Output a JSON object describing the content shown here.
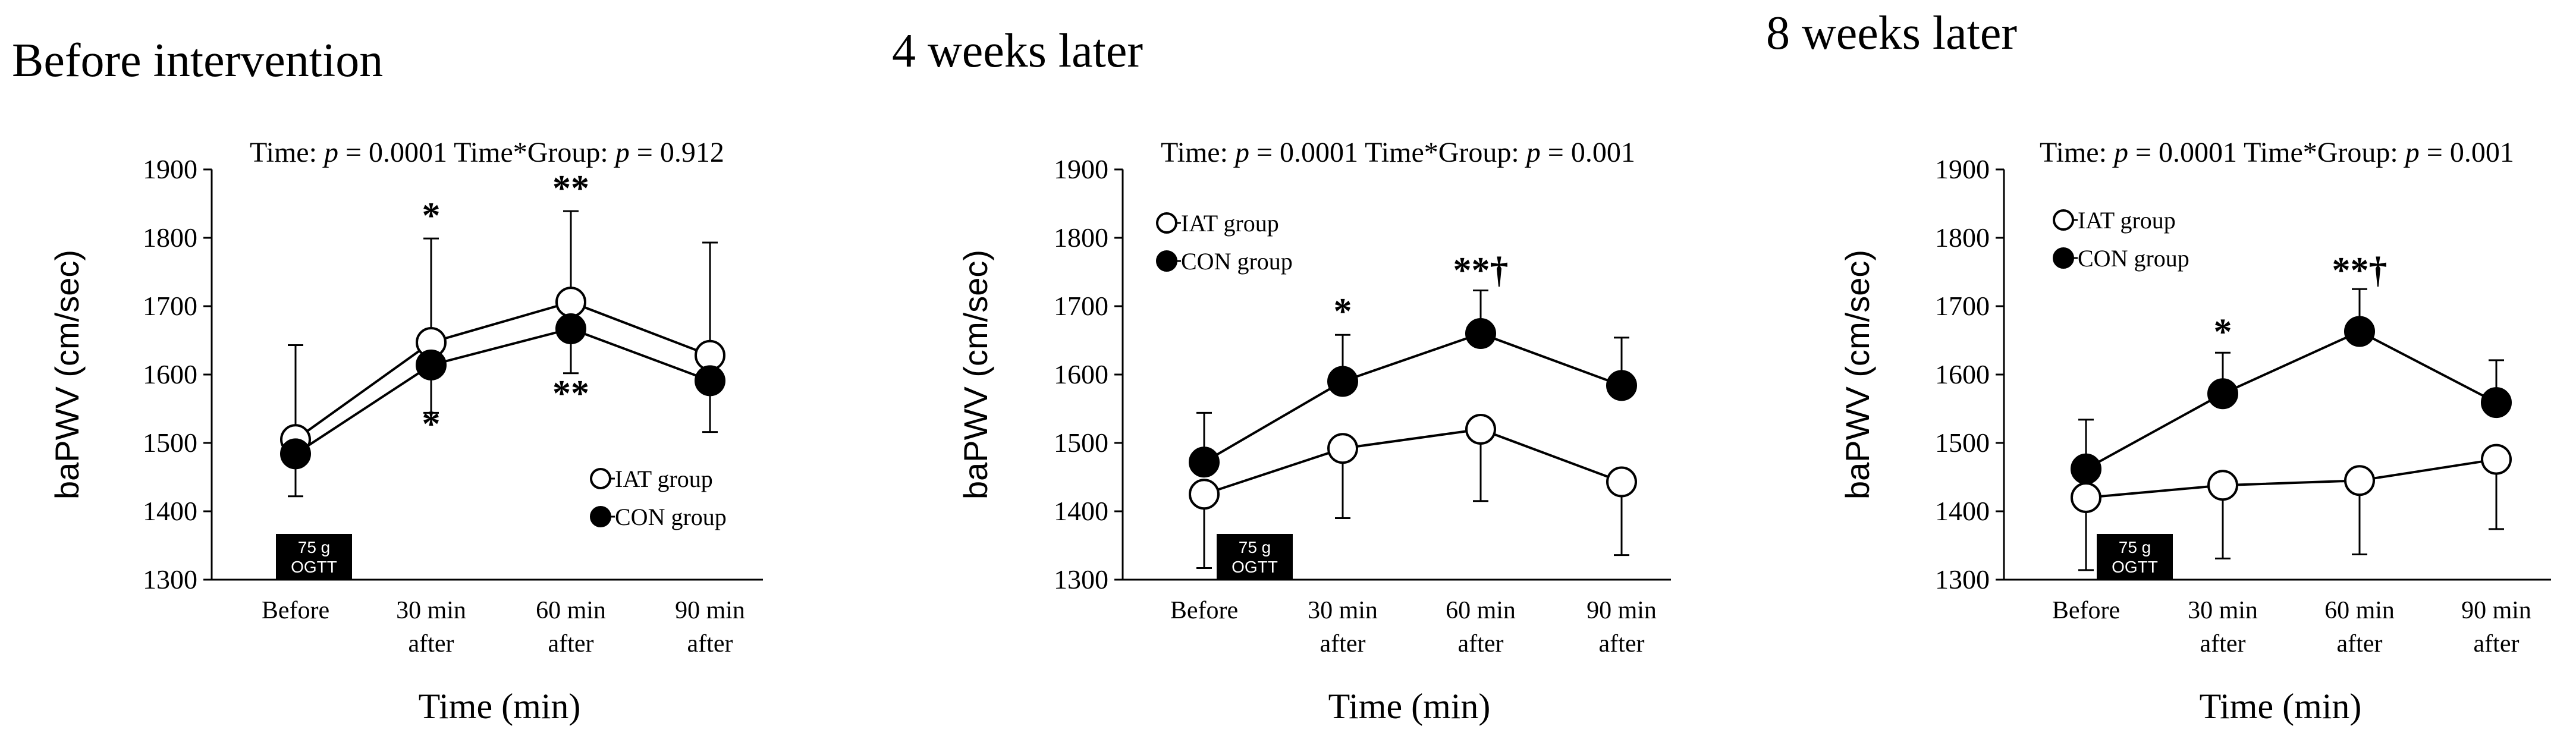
{
  "chart_data": [
    {
      "type": "line",
      "title": "Before intervention",
      "stats": {
        "time_prefix": "Time: ",
        "time_p": "p",
        "time_eq": " = 0.0001",
        "inter_prefix": "Time*Group: ",
        "inter_p": "p",
        "inter_eq": " = 0.912"
      },
      "xlabel": "Time (min)",
      "ylabel": "baPWV (cm/sec)",
      "ylim": [
        1300,
        1900
      ],
      "yticks": [
        "1300",
        "1400",
        "1500",
        "1600",
        "1700",
        "1800",
        "1900"
      ],
      "categories": [
        [
          "Before"
        ],
        [
          "30 min",
          "after"
        ],
        [
          "60 min",
          "after"
        ],
        [
          "90 min",
          "after"
        ]
      ],
      "ogtt_label": [
        "75 g",
        "OGTT"
      ],
      "legend_position": "lower-right",
      "series": [
        {
          "name": "IAT group",
          "marker": "open",
          "values": [
            1505,
            1647,
            1706,
            1628
          ],
          "error_up": [
            138,
            152,
            133,
            165
          ],
          "error_down": [
            0,
            0,
            0,
            0
          ]
        },
        {
          "name": "CON group",
          "marker": "filled",
          "values": [
            1484,
            1614,
            1667,
            1591
          ],
          "error_up": [
            0,
            0,
            0,
            0
          ],
          "error_down": [
            62,
            70,
            65,
            75
          ]
        }
      ],
      "annotations": [
        {
          "text": "*",
          "category": 1,
          "value": 1815
        },
        {
          "text": "**",
          "category": 2,
          "value": 1855
        },
        {
          "text": "*",
          "category": 1,
          "value": 1510
        },
        {
          "text": "**",
          "category": 2,
          "value": 1555
        }
      ]
    },
    {
      "type": "line",
      "title": "4 weeks later",
      "stats": {
        "time_prefix": "Time: ",
        "time_p": "p",
        "time_eq": " = 0.0001",
        "inter_prefix": "Time*Group: ",
        "inter_p": "p",
        "inter_eq": " = 0.001"
      },
      "xlabel": "Time (min)",
      "ylabel": "baPWV (cm/sec)",
      "ylim": [
        1300,
        1900
      ],
      "yticks": [
        "1300",
        "1400",
        "1500",
        "1600",
        "1700",
        "1800",
        "1900"
      ],
      "categories": [
        [
          "Before"
        ],
        [
          "30 min",
          "after"
        ],
        [
          "60 min",
          "after"
        ],
        [
          "90 min",
          "after"
        ]
      ],
      "ogtt_label": [
        "75 g",
        "OGTT"
      ],
      "legend_position": "upper-left",
      "series": [
        {
          "name": "IAT group",
          "marker": "open",
          "values": [
            1425,
            1492,
            1520,
            1443
          ],
          "error_up": [
            0,
            0,
            0,
            0
          ],
          "error_down": [
            108,
            102,
            105,
            107
          ]
        },
        {
          "name": "CON group",
          "marker": "filled",
          "values": [
            1472,
            1590,
            1660,
            1584
          ],
          "error_up": [
            72,
            68,
            63,
            70
          ],
          "error_down": [
            0,
            0,
            0,
            0
          ]
        }
      ],
      "annotations": [
        {
          "text": "*",
          "category": 1,
          "value": 1675
        },
        {
          "text": "**†",
          "category": 2,
          "value": 1735
        }
      ]
    },
    {
      "type": "line",
      "title": "8 weeks later",
      "stats": {
        "time_prefix": "Time: ",
        "time_p": "p",
        "time_eq": " = 0.0001",
        "inter_prefix": "Time*Group: ",
        "inter_p": "p",
        "inter_eq": " = 0.001"
      },
      "xlabel": "Time (min)",
      "ylabel": "baPWV (cm/sec)",
      "ylim": [
        1300,
        1900
      ],
      "yticks": [
        "1300",
        "1400",
        "1500",
        "1600",
        "1700",
        "1800",
        "1900"
      ],
      "categories": [
        [
          "Before"
        ],
        [
          "30 min",
          "after"
        ],
        [
          "60 min",
          "after"
        ],
        [
          "90 min",
          "after"
        ]
      ],
      "ogtt_label": [
        "75 g",
        "OGTT"
      ],
      "legend_position": "upper-left",
      "series": [
        {
          "name": "IAT group",
          "marker": "open",
          "values": [
            1420,
            1438,
            1445,
            1476
          ],
          "error_up": [
            0,
            0,
            0,
            0
          ],
          "error_down": [
            106,
            107,
            108,
            102
          ]
        },
        {
          "name": "CON group",
          "marker": "filled",
          "values": [
            1462,
            1572,
            1663,
            1559
          ],
          "error_up": [
            72,
            60,
            62,
            62
          ],
          "error_down": [
            0,
            0,
            0,
            0
          ]
        }
      ],
      "annotations": [
        {
          "text": "*",
          "category": 1,
          "value": 1645
        },
        {
          "text": "**†",
          "category": 2,
          "value": 1735
        }
      ]
    }
  ]
}
